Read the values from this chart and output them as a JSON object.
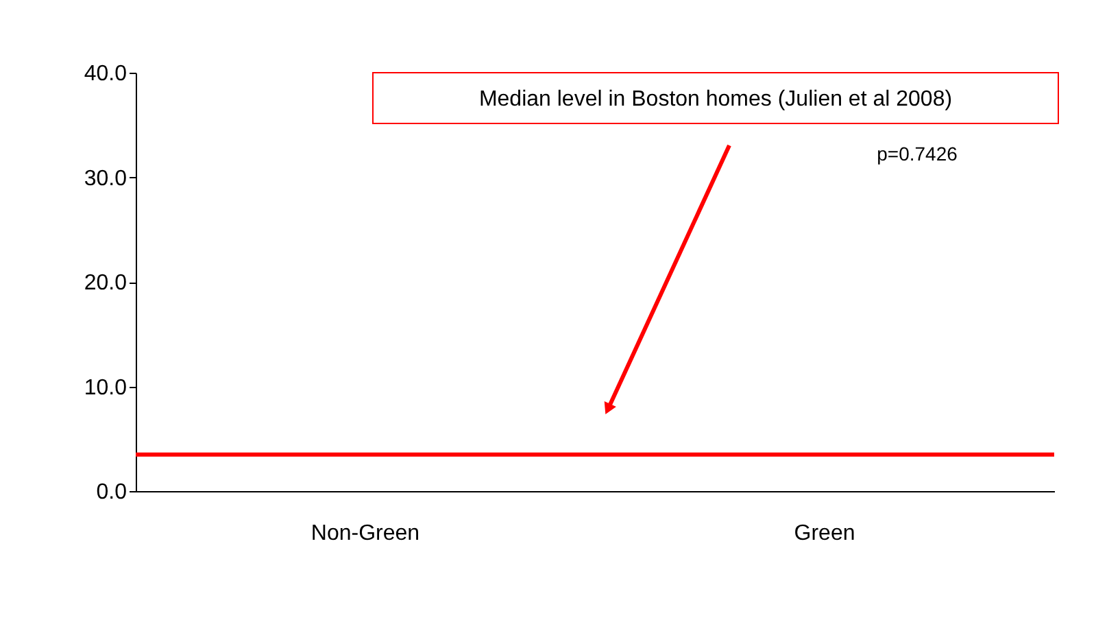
{
  "chart_data": {
    "type": "bar",
    "categories": [
      "Non-Green",
      "Green"
    ],
    "values": [
      null,
      null
    ],
    "ylim": [
      0,
      40
    ],
    "yticks": [
      {
        "value": 0,
        "label": "0.0"
      },
      {
        "value": 10,
        "label": "10.0"
      },
      {
        "value": 20,
        "label": "20.0"
      },
      {
        "value": 30,
        "label": "30.0"
      },
      {
        "value": 40,
        "label": "40.0"
      }
    ],
    "ref_lines": [
      {
        "axis": "y",
        "value": 3.5,
        "color": "#ff0000",
        "line_style": "solid"
      }
    ],
    "annotations": [
      "Median level in Boston homes (Julien et al 2008)",
      "p=0.7426"
    ],
    "grid": false
  }
}
